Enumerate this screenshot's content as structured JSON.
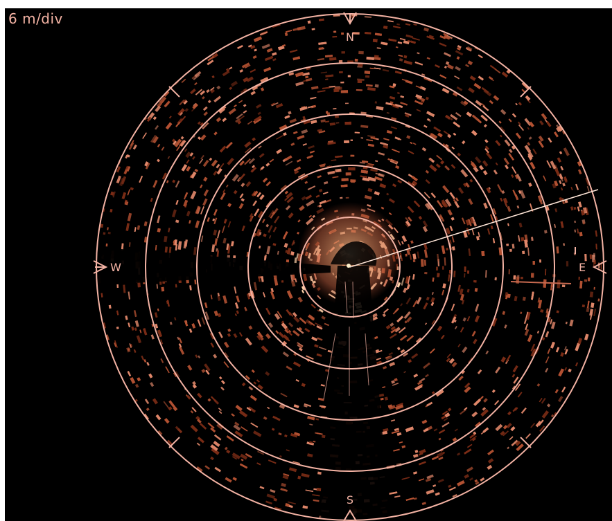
{
  "display": {
    "scale_label": "6 m/div",
    "theme": {
      "background": "#000000",
      "overlay": "#f4b3a4",
      "echo_dark": "#7a2c16",
      "echo_mid": "#b25132",
      "echo_bright": "#e0876a",
      "echo_hot": "#ffd0a8"
    }
  },
  "compass": {
    "north": "N",
    "south": "S",
    "east": "E",
    "west": "W"
  }
}
